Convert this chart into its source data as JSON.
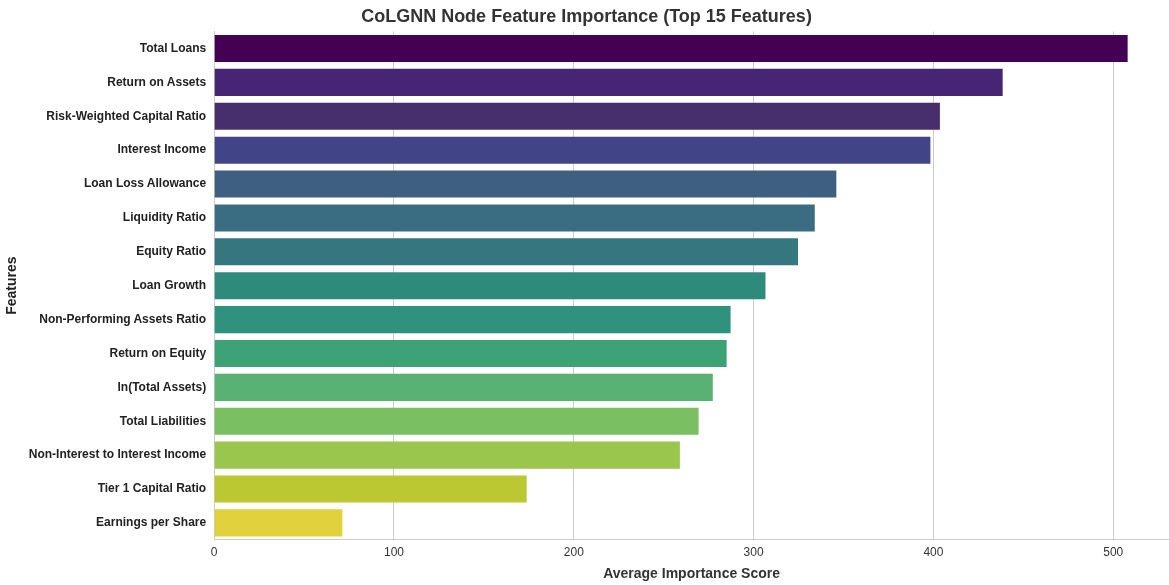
{
  "chart_data": {
    "type": "bar",
    "orientation": "horizontal",
    "title": "CoLGNN Node Feature Importance (Top 15 Features)",
    "xlabel": "Average Importance Score",
    "ylabel": "Features",
    "categories": [
      "Total Loans",
      "Return on Assets",
      "Risk-Weighted Capital Ratio",
      "Interest Income",
      "Loan Loss Allowance",
      "Liquidity Ratio",
      "Equity Ratio",
      "Loan Growth",
      "Non-Performing Assets Ratio",
      "Return on Equity",
      "ln(Total Assets)",
      "Total Liabilities",
      "Non-Interest to Interest Income",
      "Tier 1 Capital Ratio",
      "Earnings per Share"
    ],
    "values": [
      508,
      438.5,
      403.6,
      398.3,
      346,
      334,
      324.7,
      306.6,
      287.2,
      285,
      277.3,
      269.4,
      259,
      173.8,
      71.3
    ],
    "colors": [
      "#440154",
      "#482475",
      "#472e6d",
      "#414487",
      "#3e5f82",
      "#3b6d82",
      "#35767f",
      "#2e8a7b",
      "#2f927c",
      "#3ea277",
      "#59b173",
      "#7bbf63",
      "#9bc64e",
      "#bcc832",
      "#e1d13d"
    ],
    "xlim": [
      0,
      531
    ],
    "xticks": [
      0,
      100,
      200,
      300,
      400,
      500
    ],
    "grid": "x",
    "legend": false
  }
}
